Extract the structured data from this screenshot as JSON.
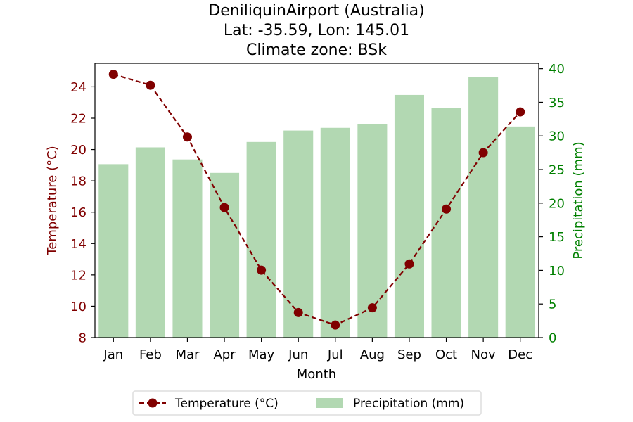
{
  "chart_data": {
    "type": "bar+line",
    "title_lines": [
      "DeniliquinAirport (Australia)",
      "Lat: -35.59, Lon: 145.01",
      "Climate zone: BSk"
    ],
    "xlabel": "Month",
    "categories": [
      "Jan",
      "Feb",
      "Mar",
      "Apr",
      "May",
      "Jun",
      "Jul",
      "Aug",
      "Sep",
      "Oct",
      "Nov",
      "Dec"
    ],
    "temperature": {
      "name": "Temperature (°C)",
      "axis_label": "Temperature (°C)",
      "values": [
        24.8,
        24.1,
        20.8,
        16.3,
        12.3,
        9.6,
        8.8,
        9.9,
        12.7,
        16.2,
        19.8,
        22.4
      ],
      "ylim": [
        8,
        25.5
      ],
      "ticks": [
        8,
        10,
        12,
        14,
        16,
        18,
        20,
        22,
        24
      ],
      "color": "#800000"
    },
    "precipitation": {
      "name": "Precipitation (mm)",
      "axis_label": "Precipitation (mm)",
      "values": [
        25.8,
        28.3,
        26.5,
        24.5,
        29.1,
        30.8,
        31.2,
        31.7,
        36.1,
        34.2,
        38.8,
        31.4
      ],
      "ylim": [
        0,
        40.8
      ],
      "ticks": [
        0,
        5,
        10,
        15,
        20,
        25,
        30,
        35,
        40
      ],
      "bar_color": "#b2d8b2",
      "axis_color": "#008000"
    },
    "legend": {
      "location": "bottom-center",
      "entries": [
        "Temperature (°C)",
        "Precipitation (mm)"
      ]
    }
  }
}
